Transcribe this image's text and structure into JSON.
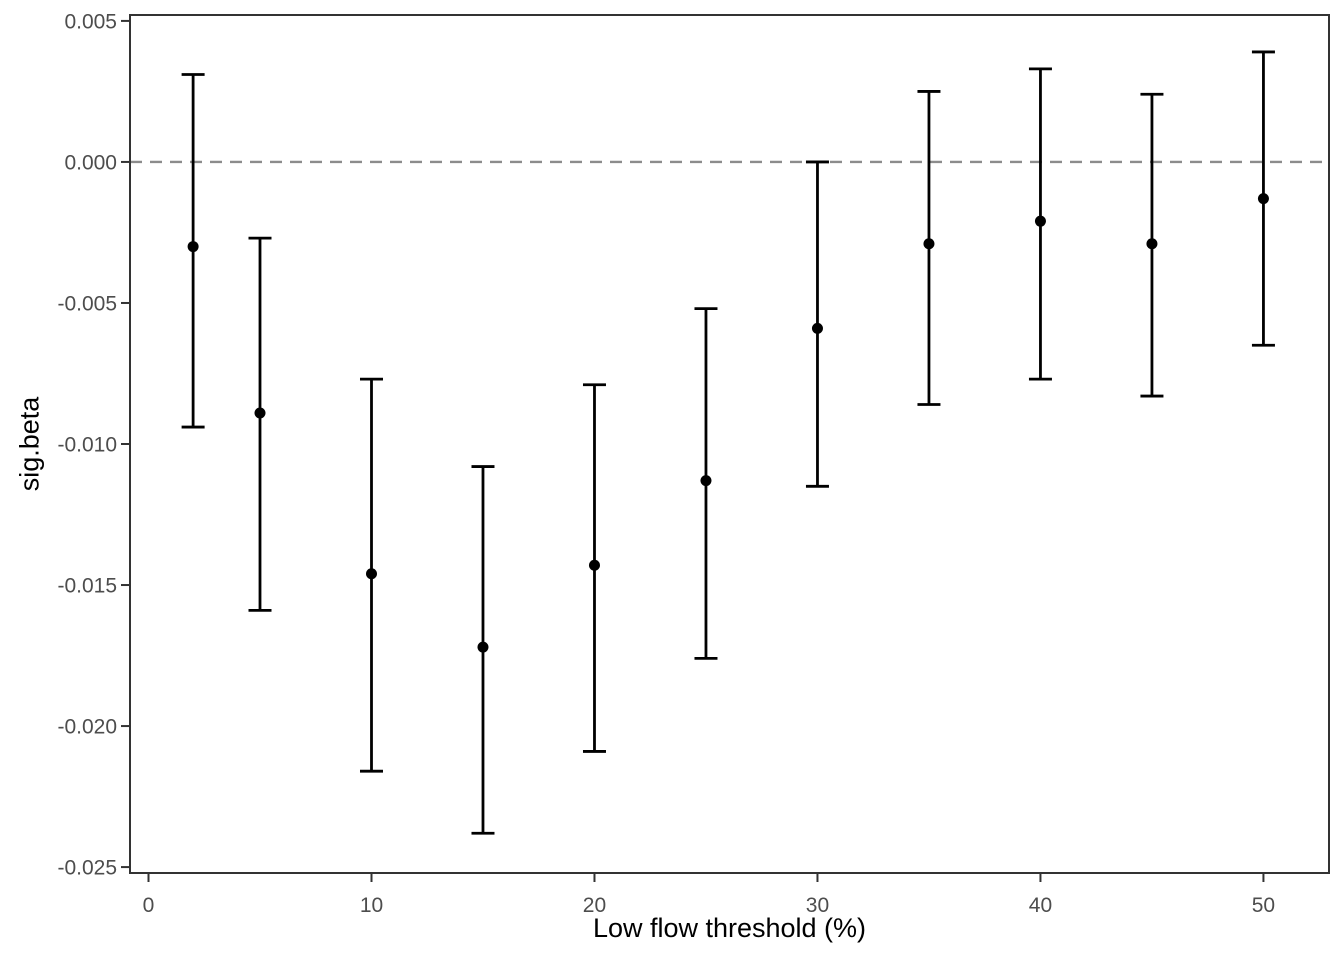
{
  "chart_data": {
    "type": "pointrange",
    "title": "",
    "xlabel": "Low flow threshold (%)",
    "ylabel": "sig.beta",
    "x_ticks": [
      0,
      10,
      20,
      30,
      40,
      50
    ],
    "x_tick_labels": [
      "0",
      "10",
      "20",
      "30",
      "40",
      "50"
    ],
    "y_ticks": [
      0.005,
      0.0,
      -0.005,
      -0.01,
      -0.015,
      -0.02,
      -0.025
    ],
    "y_tick_labels": [
      "0.005",
      "0.000",
      "-0.005",
      "-0.010",
      "-0.015",
      "-0.020",
      "-0.025"
    ],
    "xlim": [
      -0.83,
      52.94
    ],
    "ylim": [
      -0.02521,
      0.00521
    ],
    "grid": false,
    "legend": false,
    "reference_line": {
      "y": 0,
      "style": "dashed",
      "color": "#8c8c8c"
    },
    "series": [
      {
        "name": "sig.beta",
        "points": [
          {
            "x": 2,
            "y": -0.003,
            "ymin": -0.0094,
            "ymax": 0.0031
          },
          {
            "x": 5,
            "y": -0.0089,
            "ymin": -0.0159,
            "ymax": -0.0027
          },
          {
            "x": 10,
            "y": -0.0146,
            "ymin": -0.0216,
            "ymax": -0.0077
          },
          {
            "x": 15,
            "y": -0.0172,
            "ymin": -0.0238,
            "ymax": -0.0108
          },
          {
            "x": 20,
            "y": -0.0143,
            "ymin": -0.0209,
            "ymax": -0.0079
          },
          {
            "x": 25,
            "y": -0.0113,
            "ymin": -0.0176,
            "ymax": -0.0052
          },
          {
            "x": 30,
            "y": -0.0059,
            "ymin": -0.0115,
            "ymax": 0.0
          },
          {
            "x": 35,
            "y": -0.0029,
            "ymin": -0.0086,
            "ymax": 0.0025
          },
          {
            "x": 40,
            "y": -0.0021,
            "ymin": -0.0077,
            "ymax": 0.0033
          },
          {
            "x": 45,
            "y": -0.0029,
            "ymin": -0.0083,
            "ymax": 0.0024
          },
          {
            "x": 50,
            "y": -0.0013,
            "ymin": -0.0065,
            "ymax": 0.0039
          }
        ]
      }
    ],
    "colors": {
      "point": "#000000",
      "error_bar": "#000000",
      "panel_border": "#333333",
      "tick_mark": "#333333",
      "tick_text": "#4d4d4d",
      "axis_title": "#000000",
      "background": "#ffffff"
    }
  }
}
